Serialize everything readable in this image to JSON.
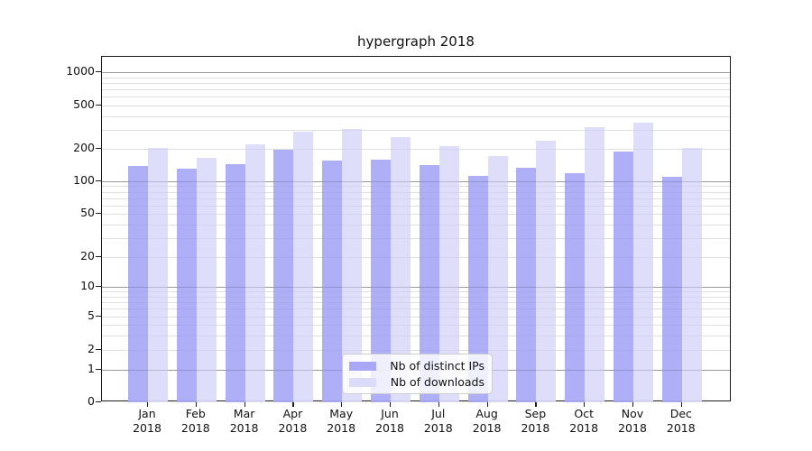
{
  "title": "hypergraph 2018",
  "chart_data": {
    "type": "bar",
    "title": "hypergraph 2018",
    "xlabel": "",
    "ylabel": "",
    "y_scale": "symlog",
    "grid": true,
    "ylim": [
      0,
      1500
    ],
    "y_ticks": [
      1000,
      500,
      200,
      100,
      50,
      20,
      10,
      5,
      2,
      1,
      0
    ],
    "categories": [
      "Jan",
      "Feb",
      "Mar",
      "Apr",
      "May",
      "Jun",
      "Jul",
      "Aug",
      "Sep",
      "Oct",
      "Nov",
      "Dec"
    ],
    "category_year": "2018",
    "series": [
      {
        "name": "Nb of distinct IPs",
        "color": "#a8a8f6",
        "values": [
          140,
          131,
          144,
          196,
          157,
          160,
          142,
          112,
          133,
          119,
          190,
          110
        ]
      },
      {
        "name": "Nb of downloads",
        "color": "#dbdbfa",
        "values": [
          202,
          164,
          218,
          290,
          305,
          258,
          212,
          172,
          237,
          315,
          345,
          203
        ]
      }
    ],
    "legend": {
      "position": "lower-center",
      "entries": [
        "Nb of distinct IPs",
        "Nb of downloads"
      ]
    }
  }
}
